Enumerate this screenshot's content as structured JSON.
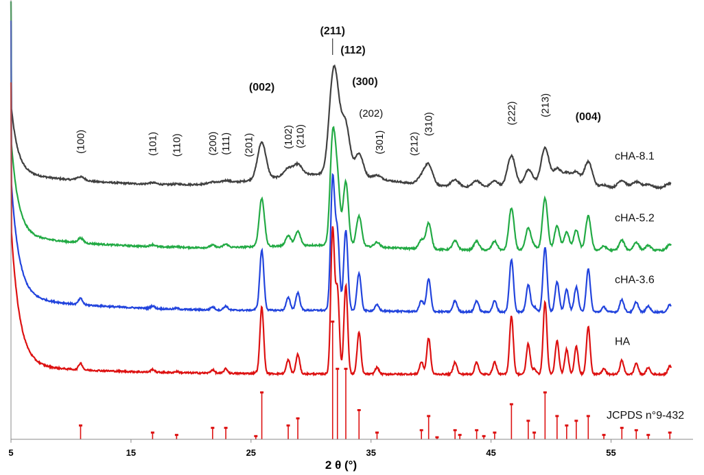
{
  "chart_data": {
    "type": "line",
    "title": "",
    "xlabel": "2 θ (°)",
    "ylabel": "",
    "xlim": [
      5,
      60
    ],
    "x_ticks": [
      "5",
      "15",
      "25",
      "35",
      "45",
      "55"
    ],
    "y_ticks_shown": false,
    "legend": "none (series labeled at right end of each trace)",
    "series": [
      {
        "name": "cHA-8.1",
        "color": "#404040",
        "offset": 3.0,
        "width_scale": 2.2,
        "intensity_scale": 0.55,
        "base": {
          "a": 3.2,
          "decay": 0.55,
          "floor": 0.6,
          "slope": -0.002
        }
      },
      {
        "name": "cHA-5.2",
        "color": "#22aa44",
        "offset": 2.0,
        "width_scale": 1.4,
        "intensity_scale": 0.72,
        "base": {
          "a": 4.5,
          "decay": 0.6,
          "floor": 0.55,
          "slope": -0.002
        }
      },
      {
        "name": "cHA-3.6",
        "color": "#2244dd",
        "offset": 1.0,
        "width_scale": 1.1,
        "intensity_scale": 0.9,
        "base": {
          "a": 5.5,
          "decay": 0.65,
          "floor": 0.55,
          "slope": -0.002
        }
      },
      {
        "name": "HA",
        "color": "#dd1111",
        "offset": 0.0,
        "width_scale": 1.0,
        "intensity_scale": 1.0,
        "base": {
          "a": 6.5,
          "decay": 0.7,
          "floor": 0.5,
          "slope": -0.002
        }
      }
    ],
    "peaks": [
      {
        "x": 10.8,
        "h": 0.12
      },
      {
        "x": 16.8,
        "h": 0.05
      },
      {
        "x": 18.8,
        "h": 0.02
      },
      {
        "x": 21.8,
        "h": 0.06
      },
      {
        "x": 22.9,
        "h": 0.08
      },
      {
        "x": 25.4,
        "h": 0.02
      },
      {
        "x": 25.9,
        "h": 1.2
      },
      {
        "x": 28.1,
        "h": 0.25
      },
      {
        "x": 28.9,
        "h": 0.35
      },
      {
        "x": 31.8,
        "h": 2.6
      },
      {
        "x": 32.2,
        "h": 1.5
      },
      {
        "x": 32.9,
        "h": 1.6
      },
      {
        "x": 34.0,
        "h": 0.75
      },
      {
        "x": 35.5,
        "h": 0.12
      },
      {
        "x": 39.2,
        "h": 0.22
      },
      {
        "x": 39.8,
        "h": 0.65
      },
      {
        "x": 42.0,
        "h": 0.22
      },
      {
        "x": 43.8,
        "h": 0.22
      },
      {
        "x": 45.3,
        "h": 0.22
      },
      {
        "x": 46.7,
        "h": 1.05
      },
      {
        "x": 48.1,
        "h": 0.55
      },
      {
        "x": 48.6,
        "h": 0.1
      },
      {
        "x": 49.5,
        "h": 1.3
      },
      {
        "x": 50.5,
        "h": 0.6
      },
      {
        "x": 51.3,
        "h": 0.45
      },
      {
        "x": 52.1,
        "h": 0.5
      },
      {
        "x": 53.1,
        "h": 0.85
      },
      {
        "x": 54.4,
        "h": 0.1
      },
      {
        "x": 55.9,
        "h": 0.25
      },
      {
        "x": 57.1,
        "h": 0.2
      },
      {
        "x": 58.1,
        "h": 0.12
      },
      {
        "x": 59.9,
        "h": 0.15
      }
    ],
    "reference": {
      "name": "JCPDS n°9-432",
      "color": "#dd1111",
      "lines": [
        {
          "x": 10.8,
          "i": 0.12
        },
        {
          "x": 16.8,
          "i": 0.06
        },
        {
          "x": 18.8,
          "i": 0.04
        },
        {
          "x": 21.8,
          "i": 0.1
        },
        {
          "x": 22.9,
          "i": 0.1
        },
        {
          "x": 25.4,
          "i": 0.03
        },
        {
          "x": 25.9,
          "i": 0.4
        },
        {
          "x": 28.1,
          "i": 0.12
        },
        {
          "x": 28.9,
          "i": 0.18
        },
        {
          "x": 31.8,
          "i": 1.0
        },
        {
          "x": 32.2,
          "i": 0.6
        },
        {
          "x": 32.9,
          "i": 0.6
        },
        {
          "x": 34.0,
          "i": 0.25
        },
        {
          "x": 35.5,
          "i": 0.06
        },
        {
          "x": 39.2,
          "i": 0.08
        },
        {
          "x": 39.8,
          "i": 0.2
        },
        {
          "x": 40.5,
          "i": 0.02
        },
        {
          "x": 42.0,
          "i": 0.08
        },
        {
          "x": 42.4,
          "i": 0.04
        },
        {
          "x": 43.8,
          "i": 0.08
        },
        {
          "x": 44.4,
          "i": 0.03
        },
        {
          "x": 45.3,
          "i": 0.06
        },
        {
          "x": 46.7,
          "i": 0.3
        },
        {
          "x": 48.1,
          "i": 0.16
        },
        {
          "x": 48.6,
          "i": 0.06
        },
        {
          "x": 49.5,
          "i": 0.4
        },
        {
          "x": 50.5,
          "i": 0.2
        },
        {
          "x": 51.3,
          "i": 0.12
        },
        {
          "x": 52.1,
          "i": 0.16
        },
        {
          "x": 53.1,
          "i": 0.2
        },
        {
          "x": 54.4,
          "i": 0.04
        },
        {
          "x": 55.9,
          "i": 0.1
        },
        {
          "x": 57.1,
          "i": 0.08
        },
        {
          "x": 58.1,
          "i": 0.04
        },
        {
          "x": 59.9,
          "i": 0.06
        }
      ]
    },
    "annotations": [
      {
        "text": "(100)",
        "x": 10.8,
        "bold": false,
        "rotated": true
      },
      {
        "text": "(101)",
        "x": 16.8,
        "bold": false,
        "rotated": true
      },
      {
        "text": "(110)",
        "x": 18.8,
        "bold": false,
        "rotated": true
      },
      {
        "text": "(200)",
        "x": 21.8,
        "bold": false,
        "rotated": true
      },
      {
        "text": "(111)",
        "x": 22.9,
        "bold": false,
        "rotated": true
      },
      {
        "text": "(201)",
        "x": 24.8,
        "bold": false,
        "rotated": true
      },
      {
        "text": "(002)",
        "x": 25.9,
        "bold": true,
        "rotated": false
      },
      {
        "text": "(102)",
        "x": 28.1,
        "bold": false,
        "rotated": true
      },
      {
        "text": "(210)",
        "x": 29.1,
        "bold": false,
        "rotated": true
      },
      {
        "text": "(211)",
        "x": 31.8,
        "bold": true,
        "rotated": false
      },
      {
        "text": "(112)",
        "x": 33.5,
        "bold": true,
        "rotated": false
      },
      {
        "text": "(300)",
        "x": 34.5,
        "bold": true,
        "rotated": false
      },
      {
        "text": "(202)",
        "x": 35.0,
        "bold": false,
        "rotated": false
      },
      {
        "text": "(301)",
        "x": 35.7,
        "bold": false,
        "rotated": true
      },
      {
        "text": "(212)",
        "x": 38.6,
        "bold": false,
        "rotated": true
      },
      {
        "text": "(310)",
        "x": 39.8,
        "bold": false,
        "rotated": true
      },
      {
        "text": "(222)",
        "x": 46.7,
        "bold": false,
        "rotated": true
      },
      {
        "text": "(213)",
        "x": 49.5,
        "bold": false,
        "rotated": true
      },
      {
        "text": "(004)",
        "x": 53.1,
        "bold": true,
        "rotated": false
      }
    ]
  }
}
